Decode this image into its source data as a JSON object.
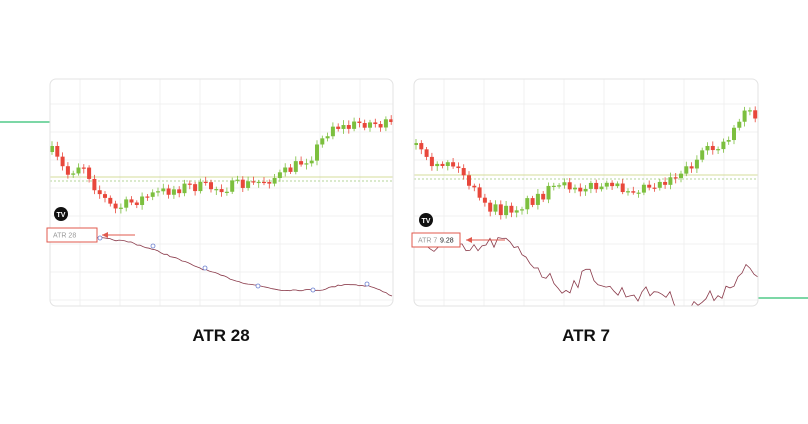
{
  "panels": [
    {
      "caption": "ATR 28",
      "indicator_label": "ATR 28"
    },
    {
      "caption": "ATR 7",
      "indicator_label": "ATR 7",
      "indicator_value": "9.28"
    }
  ]
}
